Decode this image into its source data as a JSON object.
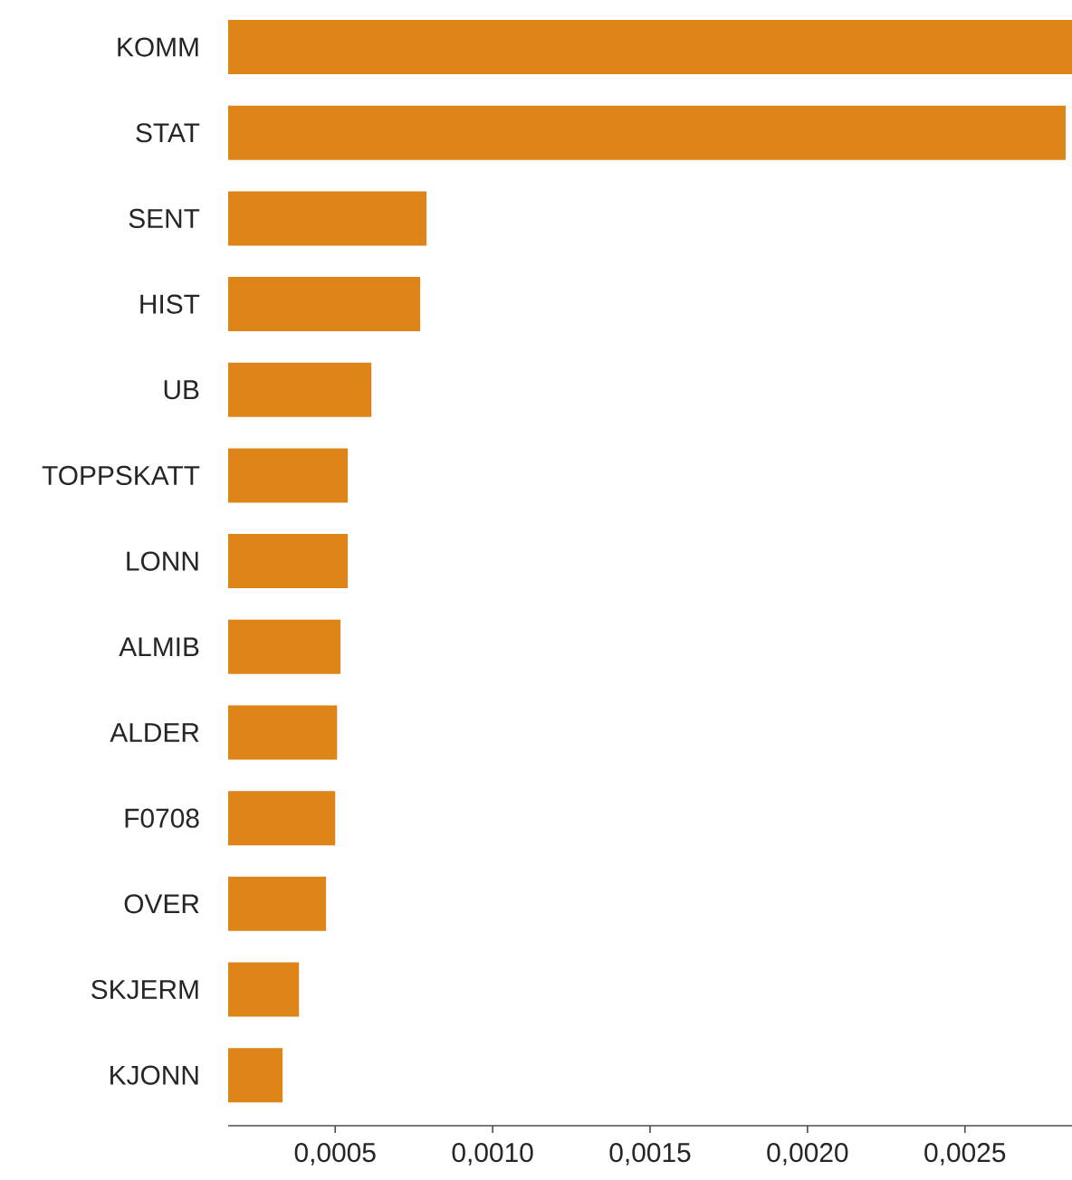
{
  "chart_data": {
    "type": "bar",
    "orientation": "horizontal",
    "color": "#dd8519",
    "categories": [
      "KOMM",
      "STAT",
      "SENT",
      "HIST",
      "UB",
      "TOPPSKATT",
      "LONN",
      "ALMIB",
      "ALDER",
      "F0708",
      "OVER",
      "SKJERM",
      "KJONN"
    ],
    "values": [
      0.00284,
      0.00282,
      0.00079,
      0.00077,
      0.000615,
      0.00054,
      0.00054,
      0.000517,
      0.000506,
      0.0005,
      0.000471,
      0.000385,
      0.000333
    ],
    "xlim": [
      0.00016,
      0.00284
    ],
    "xticks": [
      {
        "value": 0.0005,
        "label": "0,0005"
      },
      {
        "value": 0.001,
        "label": "0,0010"
      },
      {
        "value": 0.0015,
        "label": "0,0015"
      },
      {
        "value": 0.002,
        "label": "0,0020"
      },
      {
        "value": 0.0025,
        "label": "0,0025"
      }
    ]
  }
}
